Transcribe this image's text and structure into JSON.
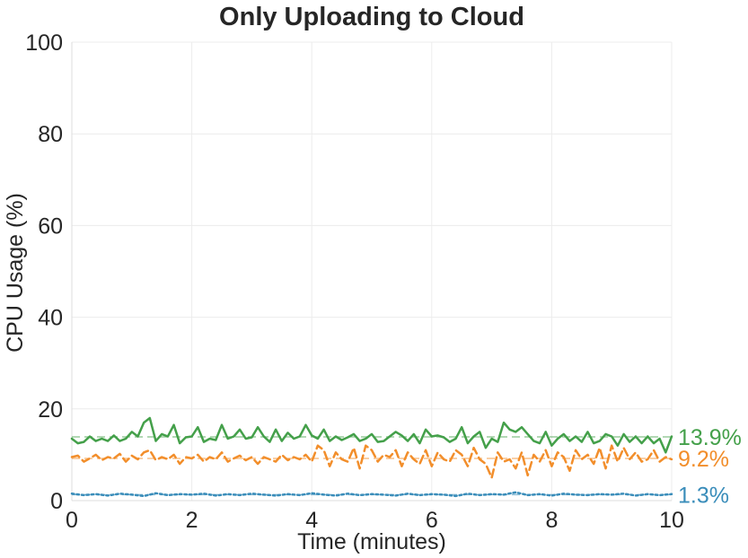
{
  "chart_data": {
    "type": "line",
    "title": "Only Uploading to Cloud",
    "xlabel": "Time (minutes)",
    "ylabel": "CPU Usage (%)",
    "xlim": [
      0,
      10
    ],
    "ylim": [
      0,
      100
    ],
    "xticks": [
      "0",
      "2",
      "4",
      "6",
      "8",
      "10"
    ],
    "yticks": [
      "0",
      "20",
      "40",
      "60",
      "80",
      "100"
    ],
    "grid": true,
    "legend": "none",
    "series": [
      {
        "color": "#44a04a",
        "style": "solid",
        "mean": 13.9,
        "end_label": "13.9%",
        "x": [
          0,
          0.1,
          0.2,
          0.3,
          0.4,
          0.5,
          0.6,
          0.7,
          0.8,
          0.9,
          1.0,
          1.1,
          1.2,
          1.3,
          1.4,
          1.5,
          1.6,
          1.7,
          1.8,
          1.9,
          2.0,
          2.1,
          2.2,
          2.3,
          2.4,
          2.5,
          2.6,
          2.7,
          2.8,
          2.9,
          3.0,
          3.1,
          3.2,
          3.3,
          3.4,
          3.5,
          3.6,
          3.7,
          3.8,
          3.9,
          4.0,
          4.1,
          4.2,
          4.3,
          4.4,
          4.5,
          4.6,
          4.7,
          4.8,
          4.9,
          5.0,
          5.1,
          5.2,
          5.3,
          5.4,
          5.5,
          5.6,
          5.7,
          5.8,
          5.9,
          6.0,
          6.1,
          6.2,
          6.3,
          6.4,
          6.5,
          6.6,
          6.7,
          6.8,
          6.9,
          7.0,
          7.1,
          7.2,
          7.3,
          7.4,
          7.5,
          7.6,
          7.7,
          7.8,
          7.9,
          8.0,
          8.1,
          8.2,
          8.3,
          8.4,
          8.5,
          8.6,
          8.7,
          8.8,
          8.9,
          9.0,
          9.1,
          9.2,
          9.3,
          9.4,
          9.5,
          9.6,
          9.7,
          9.8,
          9.9,
          10.0
        ],
        "y": [
          13.5,
          12.5,
          12.8,
          14.0,
          13.0,
          13.5,
          13.0,
          14.2,
          13.0,
          13.5,
          15.0,
          14.0,
          17.0,
          18.0,
          13.0,
          14.5,
          14.0,
          16.5,
          12.5,
          13.8,
          14.0,
          16.0,
          12.8,
          13.5,
          13.2,
          16.5,
          13.5,
          14.0,
          15.5,
          13.5,
          13.8,
          16.0,
          14.0,
          12.8,
          15.5,
          13.0,
          14.8,
          13.5,
          14.0,
          16.5,
          14.2,
          13.5,
          15.5,
          13.0,
          14.0,
          13.2,
          13.8,
          14.5,
          13.0,
          13.5,
          14.5,
          12.8,
          13.0,
          14.0,
          15.0,
          14.2,
          13.0,
          14.5,
          12.5,
          15.5,
          14.0,
          14.2,
          13.8,
          12.8,
          13.5,
          16.0,
          12.5,
          14.0,
          15.0,
          11.5,
          13.5,
          12.8,
          17.0,
          15.5,
          15.0,
          16.0,
          14.5,
          13.0,
          12.5,
          15.0,
          12.0,
          13.5,
          14.5,
          13.0,
          14.0,
          12.8,
          15.0,
          12.5,
          13.0,
          14.5,
          14.0,
          12.0,
          14.5,
          12.8,
          14.0,
          12.5,
          14.0,
          12.5,
          13.5,
          10.5,
          14.0
        ]
      },
      {
        "color": "#f28e2b",
        "style": "dashed",
        "mean": 9.2,
        "end_label": "9.2%",
        "x": [
          0,
          0.1,
          0.2,
          0.3,
          0.4,
          0.5,
          0.6,
          0.7,
          0.8,
          0.9,
          1.0,
          1.1,
          1.2,
          1.3,
          1.4,
          1.5,
          1.6,
          1.7,
          1.8,
          1.9,
          2.0,
          2.1,
          2.2,
          2.3,
          2.4,
          2.5,
          2.6,
          2.7,
          2.8,
          2.9,
          3.0,
          3.1,
          3.2,
          3.3,
          3.4,
          3.5,
          3.6,
          3.7,
          3.8,
          3.9,
          4.0,
          4.1,
          4.2,
          4.3,
          4.4,
          4.5,
          4.6,
          4.7,
          4.8,
          4.9,
          5.0,
          5.1,
          5.2,
          5.3,
          5.4,
          5.5,
          5.6,
          5.7,
          5.8,
          5.9,
          6.0,
          6.1,
          6.2,
          6.3,
          6.4,
          6.5,
          6.6,
          6.7,
          6.8,
          6.9,
          7.0,
          7.1,
          7.2,
          7.3,
          7.4,
          7.5,
          7.6,
          7.7,
          7.8,
          7.9,
          8.0,
          8.1,
          8.2,
          8.3,
          8.4,
          8.5,
          8.6,
          8.7,
          8.8,
          8.9,
          9.0,
          9.1,
          9.2,
          9.3,
          9.4,
          9.5,
          9.6,
          9.7,
          9.8,
          9.9,
          10.0
        ],
        "y": [
          9.5,
          9.8,
          8.5,
          9.2,
          10.0,
          8.8,
          9.5,
          9.2,
          10.2,
          8.5,
          9.8,
          9.0,
          10.5,
          11.0,
          8.8,
          9.5,
          9.0,
          10.0,
          8.0,
          9.5,
          9.2,
          10.0,
          8.5,
          9.5,
          9.0,
          10.5,
          8.5,
          9.2,
          9.8,
          8.8,
          9.5,
          8.0,
          9.5,
          9.0,
          8.5,
          10.0,
          8.8,
          9.5,
          9.0,
          10.0,
          8.5,
          12.0,
          11.0,
          7.5,
          10.5,
          9.0,
          8.5,
          11.5,
          7.0,
          12.0,
          11.0,
          8.5,
          10.0,
          9.5,
          11.0,
          7.5,
          10.5,
          9.0,
          8.0,
          11.0,
          7.5,
          10.5,
          9.0,
          8.5,
          11.0,
          10.0,
          7.5,
          11.5,
          9.0,
          8.0,
          5.0,
          10.5,
          8.5,
          9.0,
          7.0,
          10.5,
          5.5,
          10.0,
          8.5,
          11.0,
          7.5,
          10.5,
          9.5,
          6.5,
          11.0,
          9.0,
          10.0,
          8.0,
          11.5,
          7.0,
          12.0,
          8.5,
          11.5,
          9.0,
          10.5,
          8.5,
          9.0,
          11.0,
          8.5,
          9.5,
          9.0
        ]
      },
      {
        "color": "#3a8dba",
        "style": "dotted",
        "mean": 1.3,
        "end_label": "1.3%",
        "x": [
          0,
          0.2,
          0.4,
          0.6,
          0.8,
          1.0,
          1.2,
          1.4,
          1.6,
          1.8,
          2.0,
          2.2,
          2.4,
          2.6,
          2.8,
          3.0,
          3.2,
          3.4,
          3.6,
          3.8,
          4.0,
          4.2,
          4.4,
          4.6,
          4.8,
          5.0,
          5.2,
          5.4,
          5.6,
          5.8,
          6.0,
          6.2,
          6.4,
          6.6,
          6.8,
          7.0,
          7.2,
          7.4,
          7.6,
          7.8,
          8.0,
          8.2,
          8.4,
          8.6,
          8.8,
          9.0,
          9.2,
          9.4,
          9.6,
          9.8,
          10.0
        ],
        "y": [
          1.5,
          1.2,
          1.4,
          1.1,
          1.5,
          1.3,
          1.0,
          1.6,
          1.2,
          1.4,
          1.3,
          1.5,
          1.1,
          1.4,
          1.2,
          1.5,
          1.3,
          1.1,
          1.4,
          1.2,
          1.6,
          1.3,
          1.1,
          1.5,
          1.2,
          1.4,
          1.3,
          1.1,
          1.5,
          1.2,
          1.4,
          1.3,
          1.0,
          1.5,
          1.2,
          1.4,
          1.3,
          1.8,
          1.2,
          1.4,
          1.1,
          1.5,
          1.3,
          1.2,
          1.4,
          1.3,
          1.5,
          1.1,
          1.4,
          1.2,
          1.4
        ]
      }
    ]
  }
}
